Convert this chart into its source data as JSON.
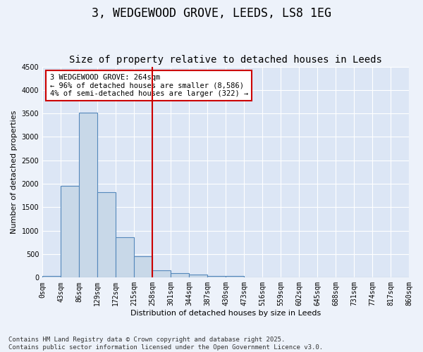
{
  "title": "3, WEDGEWOOD GROVE, LEEDS, LS8 1EG",
  "subtitle": "Size of property relative to detached houses in Leeds",
  "xlabel": "Distribution of detached houses by size in Leeds",
  "ylabel": "Number of detached properties",
  "bar_color": "#c8d8e8",
  "bar_edge_color": "#5588bb",
  "background_color": "#dce6f5",
  "grid_color": "#ffffff",
  "fig_bg_color": "#edf2fa",
  "bin_labels": [
    "0sqm",
    "43sqm",
    "86sqm",
    "129sqm",
    "172sqm",
    "215sqm",
    "258sqm",
    "301sqm",
    "344sqm",
    "387sqm",
    "430sqm",
    "473sqm",
    "516sqm",
    "559sqm",
    "602sqm",
    "645sqm",
    "688sqm",
    "731sqm",
    "774sqm",
    "817sqm",
    "860sqm"
  ],
  "bar_values": [
    30,
    1950,
    3520,
    1820,
    860,
    450,
    160,
    95,
    65,
    40,
    40,
    0,
    0,
    0,
    0,
    0,
    0,
    0,
    0,
    0
  ],
  "ylim": [
    0,
    4500
  ],
  "yticks": [
    0,
    500,
    1000,
    1500,
    2000,
    2500,
    3000,
    3500,
    4000,
    4500
  ],
  "vline_x": 6,
  "vline_color": "#cc0000",
  "annotation_text": "3 WEDGEWOOD GROVE: 264sqm\n← 96% of detached houses are smaller (8,586)\n4% of semi-detached houses are larger (322) →",
  "annotation_box_color": "#ffffff",
  "annotation_box_edge": "#cc0000",
  "footer_text": "Contains HM Land Registry data © Crown copyright and database right 2025.\nContains public sector information licensed under the Open Government Licence v3.0.",
  "title_fontsize": 12,
  "subtitle_fontsize": 10,
  "axis_label_fontsize": 8,
  "tick_fontsize": 7,
  "annotation_fontsize": 7.5,
  "footer_fontsize": 6.5
}
